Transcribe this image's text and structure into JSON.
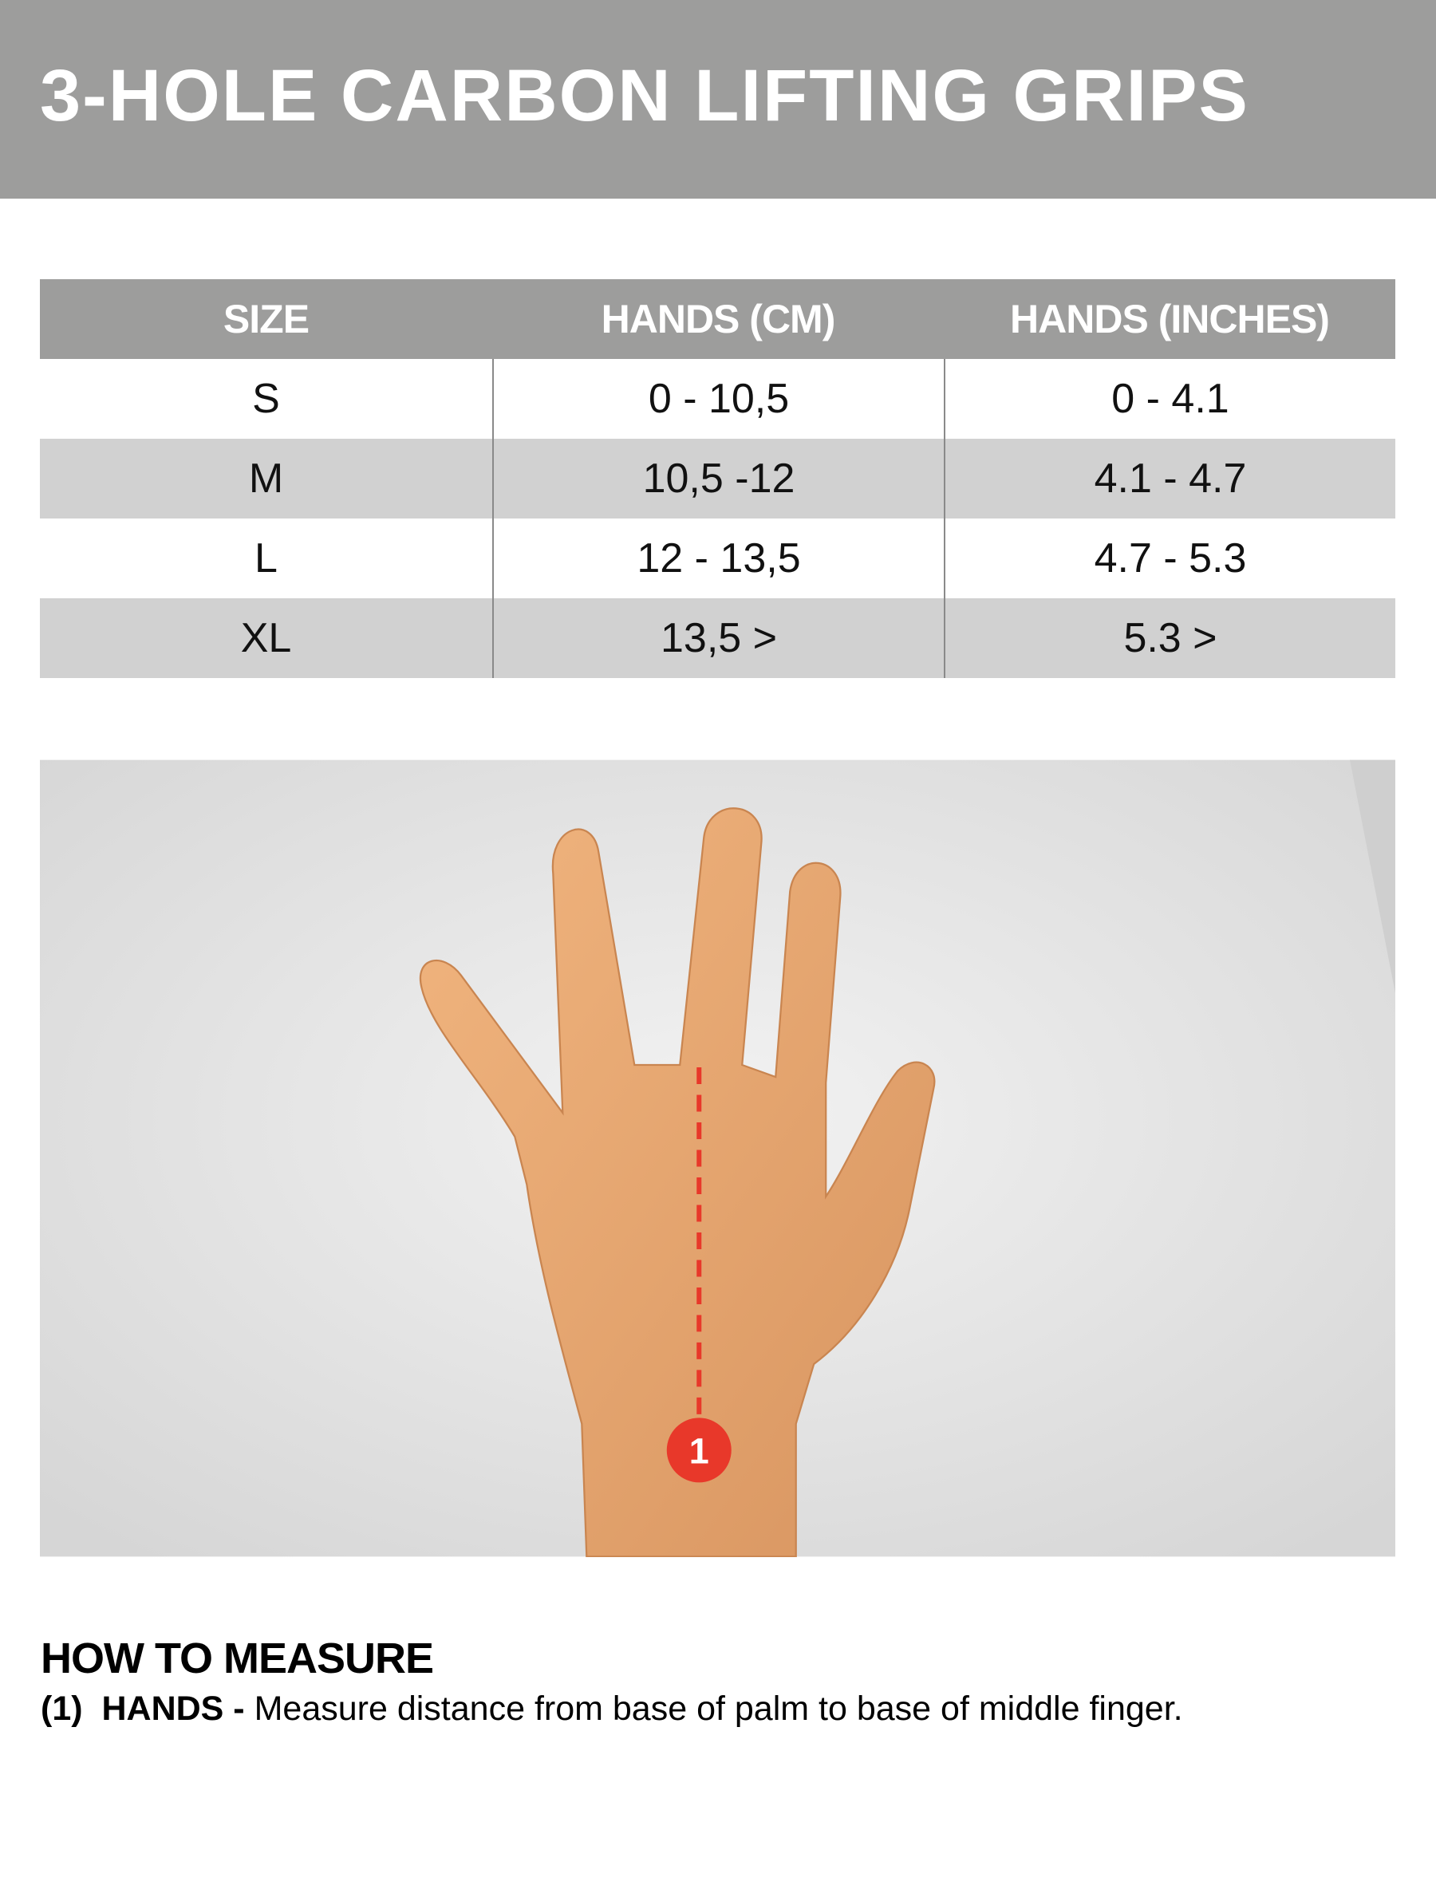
{
  "title": "3-HOLE CARBON LIFTING GRIPS",
  "table": {
    "headers": [
      "SIZE",
      "HANDS (CM)",
      "HANDS (INCHES)"
    ],
    "rows": [
      [
        "S",
        "0 - 10,5",
        "0 - 4.1"
      ],
      [
        "M",
        "10,5 -12",
        "4.1 - 4.7"
      ],
      [
        "L",
        "12 - 13,5",
        "4.7 - 5.3"
      ],
      [
        "XL",
        "13,5 >",
        "5.3 >"
      ]
    ]
  },
  "image": {
    "marker_label": "1",
    "marker_color": "#e8382a"
  },
  "how_to_measure": {
    "heading": "HOW TO MEASURE",
    "items": [
      {
        "number": "(1)",
        "label": "HANDS -",
        "text": "Measure distance from base of palm to base of middle finger."
      }
    ]
  },
  "colors": {
    "header_gray": "#9d9d9c",
    "alt_row": "#d1d1d1"
  }
}
